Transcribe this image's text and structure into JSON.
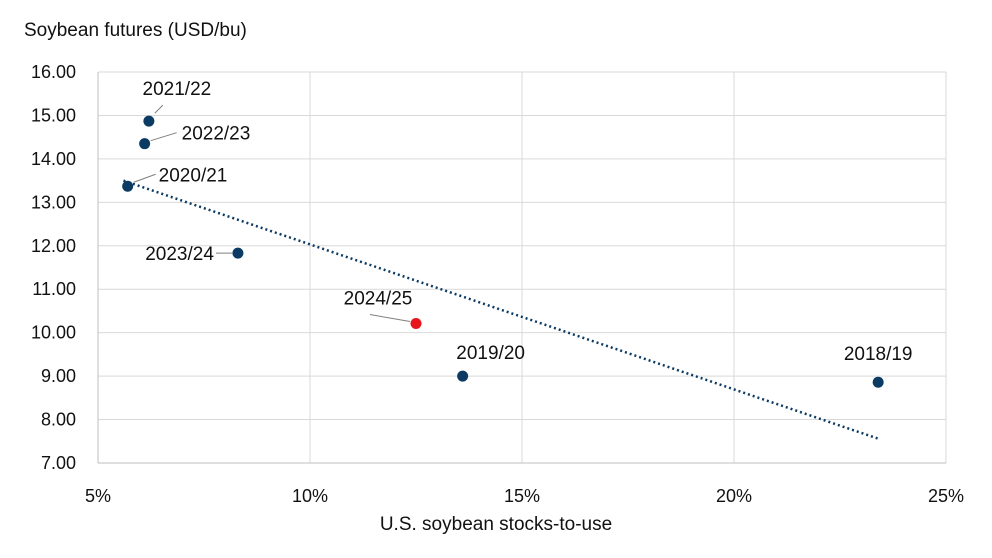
{
  "chart_data": {
    "type": "scatter",
    "ylabel": "Soybean futures (USD/bu)",
    "xlabel": "U.S. soybean stocks-to-use",
    "xlim": [
      5,
      25
    ],
    "ylim": [
      7,
      16
    ],
    "x_ticks": [
      5,
      10,
      15,
      20,
      25
    ],
    "x_tick_labels": [
      "5%",
      "10%",
      "15%",
      "20%",
      "25%"
    ],
    "y_ticks": [
      7,
      8,
      9,
      10,
      11,
      12,
      13,
      14,
      15,
      16
    ],
    "y_tick_labels": [
      "7.00",
      "8.00",
      "9.00",
      "10.00",
      "11.00",
      "12.00",
      "13.00",
      "14.00",
      "15.00",
      "16.00"
    ],
    "grid": true,
    "points": [
      {
        "label": "2021/22",
        "x": 6.2,
        "y": 14.87,
        "color": "#0b3a63"
      },
      {
        "label": "2022/23",
        "x": 6.1,
        "y": 14.35,
        "color": "#0b3a63"
      },
      {
        "label": "2020/21",
        "x": 5.7,
        "y": 13.37,
        "color": "#0b3a63"
      },
      {
        "label": "2023/24",
        "x": 8.3,
        "y": 11.83,
        "color": "#0b3a63"
      },
      {
        "label": "2024/25",
        "x": 12.5,
        "y": 10.21,
        "color": "#e8141c"
      },
      {
        "label": "2019/20",
        "x": 13.6,
        "y": 9.0,
        "color": "#0b3a63"
      },
      {
        "label": "2018/19",
        "x": 23.4,
        "y": 8.86,
        "color": "#0b3a63"
      }
    ],
    "trendline": {
      "style": "dotted",
      "color": "#0b3a63",
      "from": [
        5.6,
        13.5
      ],
      "to": [
        23.4,
        7.56
      ]
    }
  }
}
